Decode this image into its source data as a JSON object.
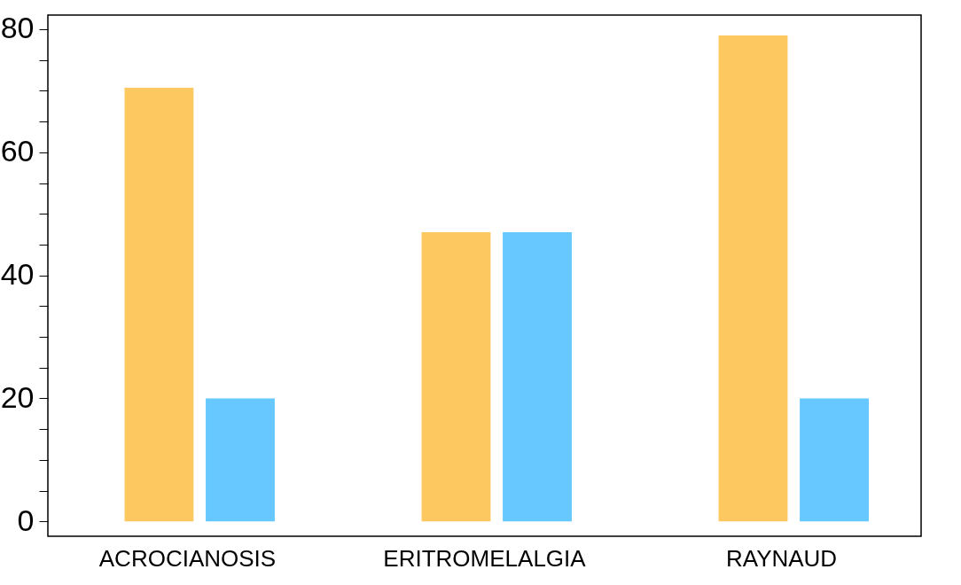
{
  "chart_data": {
    "type": "bar",
    "categories": [
      "ACROCIANOSIS",
      "ERITROMELALGIA",
      "RAYNAUD"
    ],
    "series": [
      {
        "color": "#fdc85f",
        "values": [
          70.5,
          47,
          79
        ]
      },
      {
        "color": "#66c8ff",
        "values": [
          20,
          47,
          20
        ]
      }
    ],
    "ylim": [
      -2.4,
      82.3
    ],
    "yticks": [
      0,
      {
        "value": 5,
        "label": null
      },
      {
        "value": 10,
        "label": null
      },
      {
        "value": 15,
        "label": null
      },
      20,
      {
        "value": 25,
        "label": null
      },
      {
        "value": 30,
        "label": null
      },
      {
        "value": 35,
        "label": null
      },
      40,
      {
        "value": 45,
        "label": null
      },
      {
        "value": 50,
        "label": null
      },
      {
        "value": 55,
        "label": null
      },
      60,
      {
        "value": 65,
        "label": null
      },
      {
        "value": 70,
        "label": null
      },
      {
        "value": 75,
        "label": null
      },
      80
    ],
    "grid": false,
    "legend": false
  }
}
